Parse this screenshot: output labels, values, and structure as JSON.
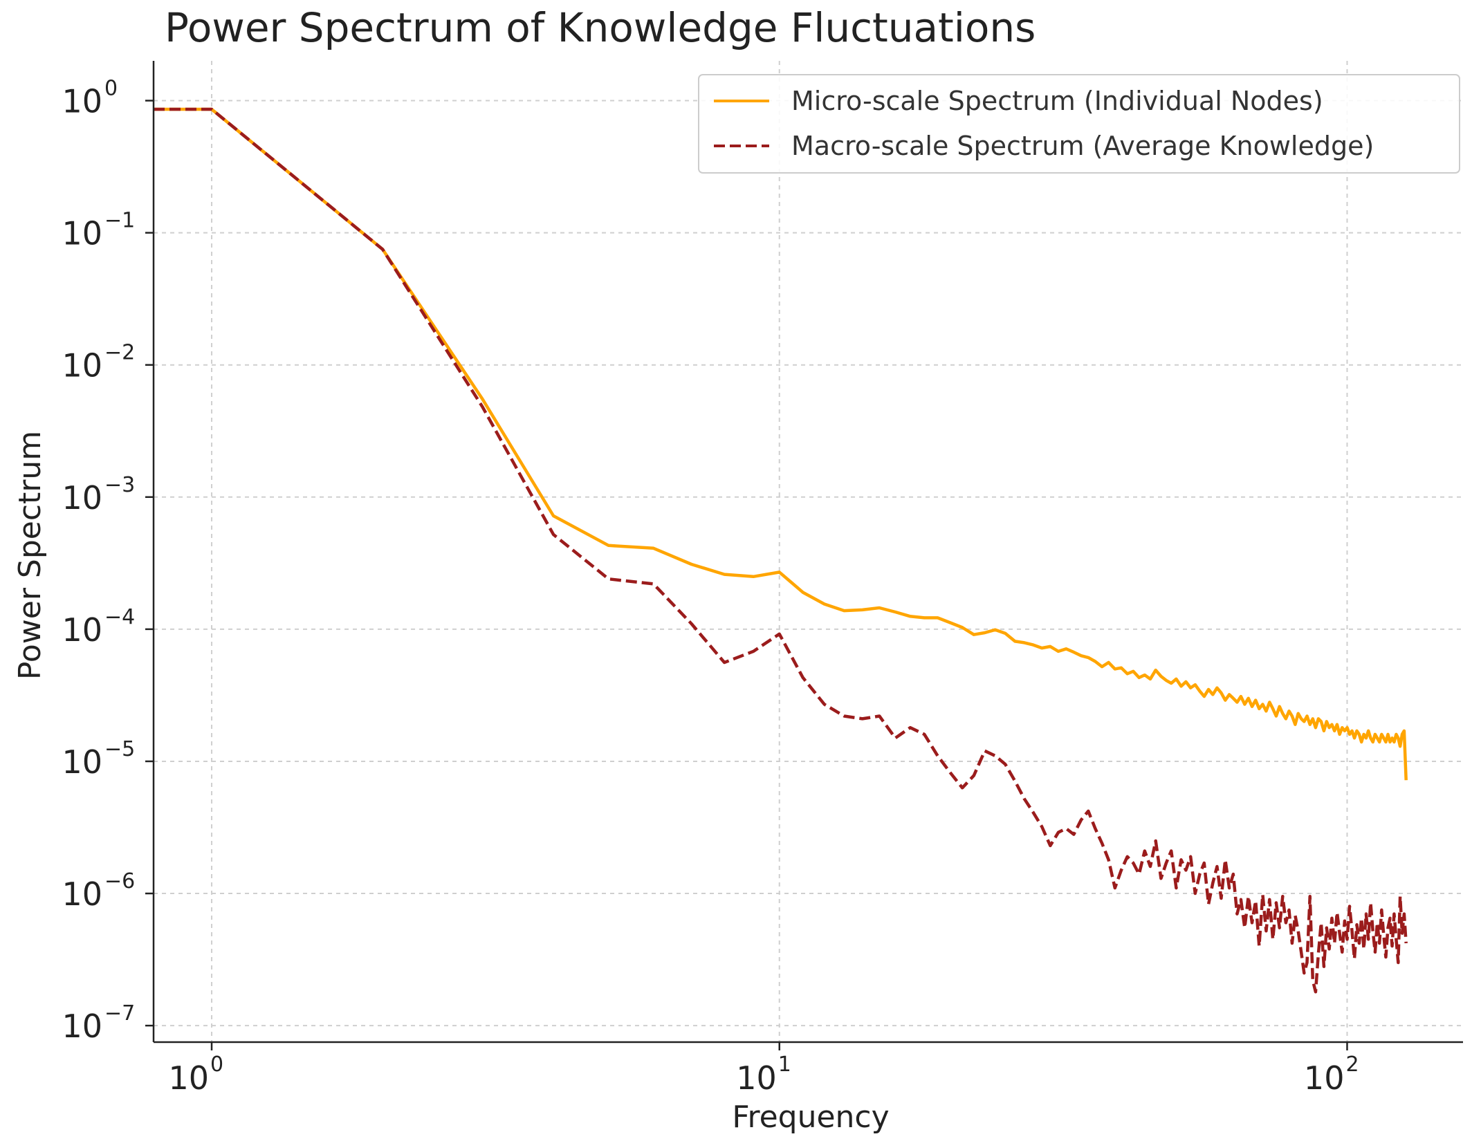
{
  "chart_data": {
    "type": "line",
    "title": "Power Spectrum of Knowledge Fluctuations",
    "xlabel": "Frequency",
    "ylabel": "Power Spectrum",
    "xscale": "log",
    "yscale": "log",
    "xlim": [
      0.79,
      160
    ],
    "ylim": [
      7.5e-08,
      2.0
    ],
    "grid": true,
    "legend_position": "top-right",
    "x_ticks": [
      {
        "base": "10",
        "exp": "0",
        "value": 1
      },
      {
        "base": "10",
        "exp": "1",
        "value": 10
      },
      {
        "base": "10",
        "exp": "2",
        "value": 100
      }
    ],
    "y_ticks": [
      {
        "base": "10",
        "exp": "0",
        "value": 1
      },
      {
        "base": "10",
        "exp": "−1",
        "value": 0.1
      },
      {
        "base": "10",
        "exp": "−2",
        "value": 0.01
      },
      {
        "base": "10",
        "exp": "−3",
        "value": 0.001
      },
      {
        "base": "10",
        "exp": "−4",
        "value": 0.0001
      },
      {
        "base": "10",
        "exp": "−5",
        "value": 1e-05
      },
      {
        "base": "10",
        "exp": "−6",
        "value": 1e-06
      },
      {
        "base": "10",
        "exp": "−7",
        "value": 1e-07
      }
    ],
    "series": [
      {
        "name": "Micro-scale Spectrum (Individual Nodes)",
        "color": "#FFA500",
        "style": "solid",
        "points": [
          [
            0.79,
            0.86
          ],
          [
            1,
            0.86
          ],
          [
            2,
            0.075
          ],
          [
            3,
            0.0055
          ],
          [
            4,
            0.00072
          ],
          [
            5,
            0.00043
          ],
          [
            6,
            0.00041
          ],
          [
            7,
            0.00031
          ],
          [
            8,
            0.00026
          ],
          [
            9,
            0.00025
          ],
          [
            10,
            0.00027
          ],
          [
            11,
            0.00019
          ],
          [
            12,
            0.000155
          ],
          [
            13,
            0.000138
          ],
          [
            14,
            0.00014
          ],
          [
            15,
            0.000145
          ],
          [
            16,
            0.000135
          ],
          [
            17,
            0.000125
          ],
          [
            18,
            0.000122
          ],
          [
            19,
            0.000122
          ],
          [
            20,
            0.000112
          ],
          [
            21,
            0.000103
          ],
          [
            22,
            9.1e-05
          ],
          [
            23,
            9.4e-05
          ],
          [
            24,
            9.9e-05
          ],
          [
            25,
            9.3e-05
          ],
          [
            26,
            8.1e-05
          ],
          [
            27,
            7.9e-05
          ],
          [
            28,
            7.6e-05
          ],
          [
            29,
            7.2e-05
          ],
          [
            30,
            7.4e-05
          ],
          [
            31,
            6.8e-05
          ],
          [
            32,
            7.1e-05
          ],
          [
            33,
            6.7e-05
          ],
          [
            34,
            6.3e-05
          ],
          [
            35,
            6.1e-05
          ],
          [
            36,
            5.7e-05
          ],
          [
            37,
            5.2e-05
          ],
          [
            38,
            5.6e-05
          ],
          [
            39,
            5e-05
          ],
          [
            40,
            5.1e-05
          ],
          [
            41,
            4.6e-05
          ],
          [
            42,
            4.8e-05
          ],
          [
            43,
            4.3e-05
          ],
          [
            44,
            4.5e-05
          ],
          [
            45,
            4.2e-05
          ],
          [
            46,
            4.9e-05
          ],
          [
            47,
            4.4e-05
          ],
          [
            48,
            4.1e-05
          ],
          [
            49,
            3.9e-05
          ],
          [
            50,
            4.2e-05
          ],
          [
            51,
            3.7e-05
          ],
          [
            52,
            4e-05
          ],
          [
            53,
            3.6e-05
          ],
          [
            54,
            3.8e-05
          ],
          [
            55,
            3.4e-05
          ],
          [
            56,
            3.1e-05
          ],
          [
            57,
            3.5e-05
          ],
          [
            58,
            3.2e-05
          ],
          [
            59,
            3.6e-05
          ],
          [
            60,
            3.3e-05
          ],
          [
            61,
            2.9e-05
          ],
          [
            62,
            3.2e-05
          ],
          [
            63,
            3e-05
          ],
          [
            64,
            2.8e-05
          ],
          [
            65,
            3.1e-05
          ],
          [
            66,
            2.7e-05
          ],
          [
            67,
            3e-05
          ],
          [
            68,
            2.6e-05
          ],
          [
            69,
            2.9e-05
          ],
          [
            70,
            2.5e-05
          ],
          [
            71,
            2.7e-05
          ],
          [
            72,
            2.4e-05
          ],
          [
            73,
            2.8e-05
          ],
          [
            74,
            2.5e-05
          ],
          [
            75,
            2.2e-05
          ],
          [
            76,
            2.6e-05
          ],
          [
            77,
            2.3e-05
          ],
          [
            78,
            2.1e-05
          ],
          [
            79,
            2.4e-05
          ],
          [
            80,
            2.2e-05
          ],
          [
            81,
            1.9e-05
          ],
          [
            82,
            2.3e-05
          ],
          [
            83,
            2.1e-05
          ],
          [
            84,
            2e-05
          ],
          [
            85,
            2.2e-05
          ],
          [
            86,
            1.9e-05
          ],
          [
            87,
            2.1e-05
          ],
          [
            88,
            1.8e-05
          ],
          [
            89,
            2.1e-05
          ],
          [
            90,
            2e-05
          ],
          [
            91,
            1.7e-05
          ],
          [
            92,
            2e-05
          ],
          [
            93,
            1.8e-05
          ],
          [
            94,
            1.9e-05
          ],
          [
            95,
            1.7e-05
          ],
          [
            96,
            1.9e-05
          ],
          [
            97,
            1.6e-05
          ],
          [
            98,
            1.8e-05
          ],
          [
            99,
            1.7e-05
          ],
          [
            100,
            1.8e-05
          ],
          [
            101,
            1.6e-05
          ],
          [
            102,
            1.7e-05
          ],
          [
            103,
            1.5e-05
          ],
          [
            104,
            1.7e-05
          ],
          [
            105,
            1.6e-05
          ],
          [
            106,
            1.4e-05
          ],
          [
            107,
            1.6e-05
          ],
          [
            108,
            1.5e-05
          ],
          [
            109,
            1.7e-05
          ],
          [
            110,
            1.5e-05
          ],
          [
            111,
            1.4e-05
          ],
          [
            112,
            1.6e-05
          ],
          [
            113,
            1.5e-05
          ],
          [
            114,
            1.4e-05
          ],
          [
            115,
            1.6e-05
          ],
          [
            116,
            1.5e-05
          ],
          [
            117,
            1.4e-05
          ],
          [
            118,
            1.6e-05
          ],
          [
            119,
            1.4e-05
          ],
          [
            120,
            1.5e-05
          ],
          [
            121,
            1.4e-05
          ],
          [
            122,
            1.6e-05
          ],
          [
            123,
            1.5e-05
          ],
          [
            124,
            1.3e-05
          ],
          [
            125,
            1.6e-05
          ],
          [
            126,
            1.7e-05
          ],
          [
            127,
            7.2e-06
          ]
        ]
      },
      {
        "name": "Macro-scale Spectrum (Average Knowledge)",
        "color": "#9B1C1C",
        "style": "dashed",
        "points": [
          [
            0.79,
            0.86
          ],
          [
            1,
            0.86
          ],
          [
            2,
            0.075
          ],
          [
            3,
            0.0048
          ],
          [
            4,
            0.00052
          ],
          [
            5,
            0.00024
          ],
          [
            6,
            0.00022
          ],
          [
            7,
            0.00011
          ],
          [
            8,
            5.6e-05
          ],
          [
            9,
            6.8e-05
          ],
          [
            10,
            9.2e-05
          ],
          [
            11,
            4.3e-05
          ],
          [
            12,
            2.7e-05
          ],
          [
            13,
            2.2e-05
          ],
          [
            14,
            2.1e-05
          ],
          [
            15,
            2.2e-05
          ],
          [
            16,
            1.5e-05
          ],
          [
            17,
            1.8e-05
          ],
          [
            18,
            1.6e-05
          ],
          [
            19,
            1.1e-05
          ],
          [
            20,
            8.2e-06
          ],
          [
            21,
            6.3e-06
          ],
          [
            22,
            7.8e-06
          ],
          [
            23,
            1.2e-05
          ],
          [
            24,
            1.1e-05
          ],
          [
            25,
            9.5e-06
          ],
          [
            26,
            7.1e-06
          ],
          [
            27,
            5.2e-06
          ],
          [
            28,
            4.1e-06
          ],
          [
            29,
            3.2e-06
          ],
          [
            30,
            2.3e-06
          ],
          [
            31,
            2.9e-06
          ],
          [
            32,
            3.1e-06
          ],
          [
            33,
            2.8e-06
          ],
          [
            34,
            3.6e-06
          ],
          [
            35,
            4.2e-06
          ],
          [
            36,
            3.1e-06
          ],
          [
            37,
            2.4e-06
          ],
          [
            38,
            1.8e-06
          ],
          [
            39,
            1.1e-06
          ],
          [
            40,
            1.5e-06
          ],
          [
            41,
            1.9e-06
          ],
          [
            42,
            1.7e-06
          ],
          [
            43,
            1.4e-06
          ],
          [
            44,
            2.1e-06
          ],
          [
            45,
            1.6e-06
          ],
          [
            46,
            2.5e-06
          ],
          [
            47,
            1.3e-06
          ],
          [
            48,
            1.7e-06
          ],
          [
            49,
            2.1e-06
          ],
          [
            50,
            1.1e-06
          ],
          [
            51,
            1.8e-06
          ],
          [
            52,
            1.5e-06
          ],
          [
            53,
            1.9e-06
          ],
          [
            54,
            1e-06
          ],
          [
            55,
            1.4e-06
          ],
          [
            56,
            1.7e-06
          ],
          [
            57,
            8.3e-07
          ],
          [
            58,
            1.2e-06
          ],
          [
            59,
            1.6e-06
          ],
          [
            60,
            9.2e-07
          ],
          [
            61,
            1.8e-06
          ],
          [
            62,
            1.1e-06
          ],
          [
            63,
            1.4e-06
          ],
          [
            64,
            7e-07
          ],
          [
            65,
            9e-07
          ],
          [
            66,
            5.5e-07
          ],
          [
            67,
            9.5e-07
          ],
          [
            68,
            6e-07
          ],
          [
            69,
            8.8e-07
          ],
          [
            70,
            4e-07
          ],
          [
            71,
            9.8e-07
          ],
          [
            72,
            5.2e-07
          ],
          [
            73,
            9e-07
          ],
          [
            74,
            4.5e-07
          ],
          [
            75,
            8.5e-07
          ],
          [
            76,
            5.5e-07
          ],
          [
            77,
            9.5e-07
          ],
          [
            78,
            6e-07
          ],
          [
            79,
            7.5e-07
          ],
          [
            80,
            4.2e-07
          ],
          [
            81,
            6.8e-07
          ],
          [
            82,
            5.2e-07
          ],
          [
            83,
            3.6e-07
          ],
          [
            84,
            2.5e-07
          ],
          [
            85,
            3e-07
          ],
          [
            86,
            9.5e-07
          ],
          [
            87,
            2.2e-07
          ],
          [
            88,
            1.8e-07
          ],
          [
            89,
            3.5e-07
          ],
          [
            90,
            6e-07
          ],
          [
            91,
            2.8e-07
          ],
          [
            92,
            5.5e-07
          ],
          [
            93,
            3.8e-07
          ],
          [
            94,
            6.5e-07
          ],
          [
            95,
            4.2e-07
          ],
          [
            96,
            7.2e-07
          ],
          [
            97,
            5e-07
          ],
          [
            98,
            3.6e-07
          ],
          [
            99,
            6.2e-07
          ],
          [
            100,
            4.5e-07
          ],
          [
            101,
            8e-07
          ],
          [
            102,
            5.2e-07
          ],
          [
            103,
            3.2e-07
          ],
          [
            104,
            5.8e-07
          ],
          [
            105,
            4.2e-07
          ],
          [
            106,
            6.5e-07
          ],
          [
            107,
            3.8e-07
          ],
          [
            108,
            7e-07
          ],
          [
            109,
            4.5e-07
          ],
          [
            110,
            8.5e-07
          ],
          [
            111,
            5.2e-07
          ],
          [
            112,
            3.6e-07
          ],
          [
            113,
            6e-07
          ],
          [
            114,
            4.2e-07
          ],
          [
            115,
            7.5e-07
          ],
          [
            116,
            4.8e-07
          ],
          [
            117,
            3.3e-07
          ],
          [
            118,
            5.5e-07
          ],
          [
            119,
            6.5e-07
          ],
          [
            120,
            4e-07
          ],
          [
            121,
            7e-07
          ],
          [
            122,
            4.5e-07
          ],
          [
            123,
            3e-07
          ],
          [
            124,
            9.5e-07
          ],
          [
            125,
            5e-07
          ],
          [
            126,
            7e-07
          ],
          [
            127,
            4.2e-07
          ]
        ]
      }
    ]
  }
}
